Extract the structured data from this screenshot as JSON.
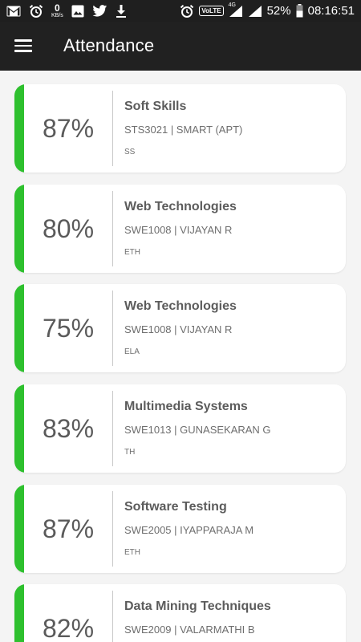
{
  "status_bar": {
    "data_speed_value": "0",
    "data_speed_unit": "KB/s",
    "volte_label": "VoLTE",
    "network_label": "4G",
    "battery": "52%",
    "time": "08:16:51",
    "icons": [
      "gmail-icon",
      "alarm-icon",
      "image-icon",
      "twitter-icon",
      "download-icon",
      "alarm-icon",
      "signal-icon",
      "battery-icon"
    ]
  },
  "app_bar": {
    "title": "Attendance",
    "menu_icon": "hamburger-menu-icon"
  },
  "colors": {
    "accent_bar": "#2ec02e",
    "app_bar_bg": "#212121",
    "page_bg": "#f4f4f4",
    "card_bg": "#ffffff"
  },
  "courses": [
    {
      "percent": "87%",
      "title": "Soft Skills",
      "code_faculty": "STS3021 | SMART (APT)",
      "slot": "SS"
    },
    {
      "percent": "80%",
      "title": "Web Technologies",
      "code_faculty": "SWE1008 | VIJAYAN R",
      "slot": "ETH"
    },
    {
      "percent": "75%",
      "title": "Web Technologies",
      "code_faculty": "SWE1008 | VIJAYAN R",
      "slot": "ELA"
    },
    {
      "percent": "83%",
      "title": "Multimedia Systems",
      "code_faculty": "SWE1013 | GUNASEKARAN G",
      "slot": "TH"
    },
    {
      "percent": "87%",
      "title": "Software Testing",
      "code_faculty": "SWE2005 | IYAPPARAJA M",
      "slot": "ETH"
    },
    {
      "percent": "82%",
      "title": "Data Mining Techniques",
      "code_faculty": "SWE2009 | VALARMATHI B",
      "slot": ""
    }
  ]
}
